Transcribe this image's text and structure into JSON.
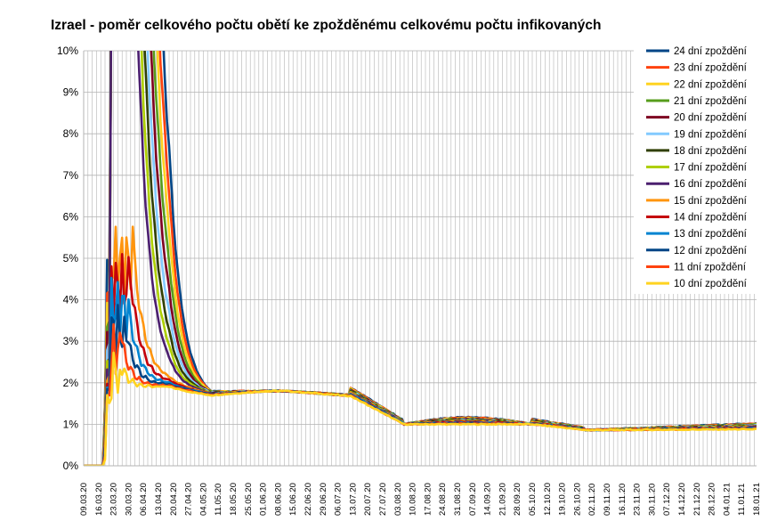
{
  "chart_data": {
    "type": "line",
    "title": "Izrael - poměr celkového počtu obětí ke zpožděnému celkovému počtu infikovaných",
    "xlabel": "",
    "ylabel": "",
    "ylim": [
      0,
      10
    ],
    "y_unit": "%",
    "y_ticks": [
      "0%",
      "1%",
      "2%",
      "3%",
      "4%",
      "5%",
      "6%",
      "7%",
      "8%",
      "9%",
      "10%"
    ],
    "x_ticks": [
      "09.03.20",
      "16.03.20",
      "23.03.20",
      "30.03.20",
      "06.04.20",
      "13.04.20",
      "20.04.20",
      "27.04.20",
      "04.05.20",
      "11.05.20",
      "18.05.20",
      "25.05.20",
      "01.06.20",
      "08.06.20",
      "15.06.20",
      "22.06.20",
      "29.06.20",
      "06.07.20",
      "13.07.20",
      "20.07.20",
      "27.07.20",
      "03.08.20",
      "10.08.20",
      "17.08.20",
      "24.08.20",
      "31.08.20",
      "07.09.20",
      "14.09.20",
      "21.09.20",
      "28.09.20",
      "05.10.20",
      "12.10.20",
      "19.10.20",
      "26.10.20",
      "02.11.20",
      "09.11.20",
      "16.11.20",
      "23.11.20",
      "30.11.20",
      "07.12.20",
      "14.12.20",
      "21.12.20",
      "28.12.20",
      "04.01.21",
      "11.01.21",
      "18.01.21"
    ],
    "grid": true,
    "legend_position": "right",
    "series": [
      {
        "name": "24 dní zpoždění",
        "delay": 24,
        "color": "#004586",
        "peak": 5.2
      },
      {
        "name": "23 dní zpoždění",
        "delay": 23,
        "color": "#ff420e",
        "peak": 4.6
      },
      {
        "name": "22 dní zpoždění",
        "delay": 22,
        "color": "#ffd320",
        "peak": 4.1
      },
      {
        "name": "21 dní zpoždění",
        "delay": 21,
        "color": "#579d1c",
        "peak": 3.6
      },
      {
        "name": "20 dní zpoždění",
        "delay": 20,
        "color": "#7e0021",
        "peak": 3.3
      },
      {
        "name": "19 dní zpoždění",
        "delay": 19,
        "color": "#83caff",
        "peak": 3.0
      },
      {
        "name": "18 dní zpoždění",
        "delay": 18,
        "color": "#314004",
        "peak": 2.7
      },
      {
        "name": "17 dní zpoždění",
        "delay": 17,
        "color": "#aecf00",
        "peak": 2.5
      },
      {
        "name": "16 dní zpoždění",
        "delay": 16,
        "color": "#4b1f6f",
        "peak": 2.3
      },
      {
        "name": "15 dní zpoždění",
        "delay": 15,
        "color": "#ff950e",
        "peak": 2.1
      },
      {
        "name": "14 dní zpoždění",
        "delay": 14,
        "color": "#c5000b",
        "peak": 1.95
      },
      {
        "name": "13 dní zpoždění",
        "delay": 13,
        "color": "#0084d1",
        "peak": 1.85
      },
      {
        "name": "12 dní zpoždění",
        "delay": 12,
        "color": "#004586",
        "peak": 1.75
      },
      {
        "name": "11 dní zpoždění",
        "delay": 11,
        "color": "#ff420e",
        "peak": 1.68
      },
      {
        "name": "10 dní zpoždění",
        "delay": 10,
        "color": "#ffd320",
        "peak": 1.62
      }
    ]
  }
}
